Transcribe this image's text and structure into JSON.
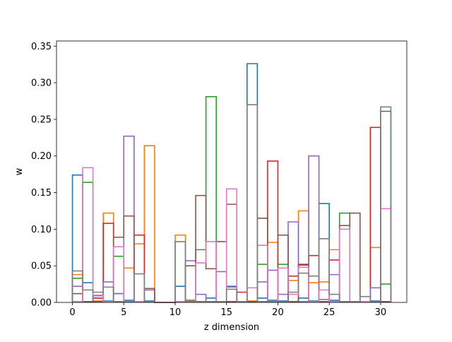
{
  "chart_data": {
    "type": "histogram-step",
    "xlabel": "z dimension",
    "ylabel": "w",
    "xlim": [
      -1.55,
      32.55
    ],
    "ylim": [
      0,
      0.357
    ],
    "xticks": [
      0,
      5,
      10,
      15,
      20,
      25,
      30
    ],
    "yticks": [
      0.0,
      0.05,
      0.1,
      0.15,
      0.2,
      0.25,
      0.3,
      0.35
    ],
    "xtick_labels": [
      "0",
      "5",
      "10",
      "15",
      "20",
      "25",
      "30"
    ],
    "ytick_labels": [
      "0.00",
      "0.05",
      "0.10",
      "0.15",
      "0.20",
      "0.25",
      "0.30",
      "0.35"
    ],
    "bin_edges": [
      0,
      1,
      2,
      3,
      4,
      5,
      6,
      7,
      8,
      9,
      10,
      11,
      12,
      13,
      14,
      15,
      16,
      17,
      18,
      19,
      20,
      21,
      22,
      23,
      24,
      25,
      26,
      27,
      28,
      29,
      30,
      31
    ],
    "series": [
      {
        "color": "#1f77b4",
        "values": [
          0.174,
          0.027,
          0.006,
          0.002,
          0.012,
          0.003,
          0.001,
          0.002,
          0.0,
          0.0,
          0.022,
          0.003,
          0.001,
          0.006,
          0.001,
          0.022,
          0.001,
          0.326,
          0.006,
          0.003,
          0.002,
          0.001,
          0.006,
          0.002,
          0.135,
          0.003,
          0.001,
          0.001,
          0.001,
          0.002,
          0.261
        ]
      },
      {
        "color": "#ff7f0e",
        "values": [
          0.038,
          0.001,
          0.002,
          0.122,
          0.001,
          0.047,
          0.08,
          0.214,
          0.0,
          0.0,
          0.092,
          0.002,
          0.001,
          0.001,
          0.001,
          0.001,
          0.001,
          0.002,
          0.001,
          0.082,
          0.001,
          0.03,
          0.125,
          0.027,
          0.028,
          0.072,
          0.001,
          0.001,
          0.001,
          0.075,
          0.001
        ]
      },
      {
        "color": "#2ca02c",
        "values": [
          0.033,
          0.164,
          0.001,
          0.001,
          0.063,
          0.001,
          0.001,
          0.001,
          0.0,
          0.0,
          0.001,
          0.001,
          0.072,
          0.281,
          0.001,
          0.001,
          0.001,
          0.001,
          0.052,
          0.001,
          0.052,
          0.001,
          0.001,
          0.001,
          0.001,
          0.001,
          0.122,
          0.001,
          0.001,
          0.001,
          0.025
        ]
      },
      {
        "color": "#d62728",
        "values": [
          0.001,
          0.001,
          0.006,
          0.108,
          0.001,
          0.001,
          0.092,
          0.001,
          0.0,
          0.0,
          0.001,
          0.001,
          0.001,
          0.001,
          0.001,
          0.001,
          0.014,
          0.001,
          0.001,
          0.193,
          0.001,
          0.036,
          0.052,
          0.064,
          0.001,
          0.058,
          0.001,
          0.001,
          0.001,
          0.239,
          0.001
        ]
      },
      {
        "color": "#9467bd",
        "values": [
          0.022,
          0.001,
          0.009,
          0.028,
          0.012,
          0.227,
          0.001,
          0.017,
          0.0,
          0.0,
          0.001,
          0.057,
          0.011,
          0.001,
          0.042,
          0.021,
          0.001,
          0.001,
          0.028,
          0.044,
          0.011,
          0.11,
          0.001,
          0.2,
          0.004,
          0.038,
          0.001,
          0.001,
          0.001,
          0.02,
          0.001
        ]
      },
      {
        "color": "#8c564b",
        "values": [
          0.012,
          0.001,
          0.001,
          0.001,
          0.089,
          0.118,
          0.001,
          0.019,
          0.0,
          0.0,
          0.001,
          0.05,
          0.146,
          0.046,
          0.083,
          0.134,
          0.001,
          0.001,
          0.115,
          0.001,
          0.092,
          0.001,
          0.051,
          0.001,
          0.001,
          0.001,
          0.105,
          0.122,
          0.001,
          0.001,
          0.001
        ]
      },
      {
        "color": "#e377c2",
        "values": [
          0.001,
          0.184,
          0.01,
          0.001,
          0.076,
          0.001,
          0.001,
          0.001,
          0.0,
          0.0,
          0.001,
          0.001,
          0.054,
          0.083,
          0.001,
          0.155,
          0.001,
          0.02,
          0.078,
          0.001,
          0.047,
          0.011,
          0.048,
          0.001,
          0.017,
          0.001,
          0.1,
          0.001,
          0.001,
          0.001,
          0.128
        ]
      },
      {
        "color": "#7f7f7f",
        "values": [
          0.043,
          0.017,
          0.014,
          0.021,
          0.001,
          0.001,
          0.039,
          0.001,
          0.0,
          0.0,
          0.083,
          0.001,
          0.001,
          0.001,
          0.001,
          0.018,
          0.001,
          0.27,
          0.001,
          0.001,
          0.001,
          0.014,
          0.04,
          0.036,
          0.087,
          0.011,
          0.001,
          0.001,
          0.008,
          0.001,
          0.267
        ]
      }
    ]
  }
}
